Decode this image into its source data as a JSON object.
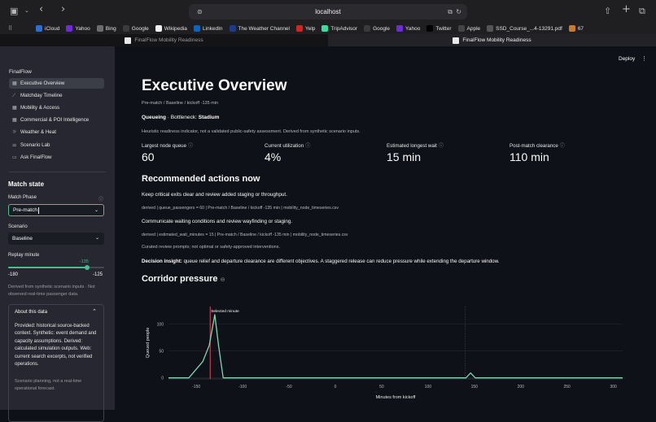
{
  "browser": {
    "url": "localhost",
    "bookmarks": [
      {
        "label": "iCloud",
        "icon": "apple-logo-icon",
        "color": "#2b6fd6"
      },
      {
        "label": "Yahoo",
        "icon": "yahoo-icon",
        "color": "#6d2bd9"
      },
      {
        "label": "Bing",
        "icon": "bing-icon",
        "color": "#6c6c6c"
      },
      {
        "label": "Google",
        "icon": "google-icon",
        "color": "#3a3a3a"
      },
      {
        "label": "Wikipedia",
        "icon": "wikipedia-icon",
        "color": "#f1f1f1"
      },
      {
        "label": "LinkedIn",
        "icon": "linkedin-icon",
        "color": "#0a66c2"
      },
      {
        "label": "The Weather Channel",
        "icon": "weather-channel-icon",
        "color": "#1d3a8f"
      },
      {
        "label": "Yelp",
        "icon": "yelp-icon",
        "color": "#d32323"
      },
      {
        "label": "TripAdvisor",
        "icon": "tripadvisor-icon",
        "color": "#34e0a1"
      },
      {
        "label": "Google",
        "icon": "google-icon",
        "color": "#3a3a3a"
      },
      {
        "label": "Yahoo",
        "icon": "yahoo-icon",
        "color": "#6d2bd9"
      },
      {
        "label": "Twitter",
        "icon": "twitter-x-icon",
        "color": "#000000"
      },
      {
        "label": "Apple",
        "icon": "apple-logo-icon",
        "color": "#444444"
      },
      {
        "label": "SSD_Course_...4-13291.pdf",
        "icon": "pdf-icon",
        "color": "#555555"
      },
      {
        "label": "67",
        "icon": "nbc-icon",
        "color": "#c77b2b"
      }
    ],
    "tabs": [
      {
        "label": "FinalFlow Mobility Readiness",
        "active": false
      },
      {
        "label": "FinalFlow Mobility Readiness",
        "active": true
      }
    ]
  },
  "app": {
    "deploy_label": "Deploy",
    "brand": "FinalFlow",
    "nav": [
      {
        "label": "Executive Overview",
        "icon": "grid-icon",
        "active": true
      },
      {
        "label": "Matchday Timeline",
        "icon": "trend-line-icon",
        "active": false
      },
      {
        "label": "Mobility & Access",
        "icon": "grid-icon",
        "active": false
      },
      {
        "label": "Commercial & POI Intelligence",
        "icon": "grid-icon",
        "active": false
      },
      {
        "label": "Weather & Heat",
        "icon": "sun-icon",
        "active": false
      },
      {
        "label": "Scenario Lab",
        "icon": "sliders-icon",
        "active": false
      },
      {
        "label": "Ask FinalFlow",
        "icon": "chat-icon",
        "active": false
      }
    ],
    "match_state": {
      "heading": "Match state",
      "phase_label": "Match Phase",
      "phase_value": "Pre-match",
      "scenario_label": "Scenario",
      "scenario_value": "Baseline",
      "replay_label": "Replay minute",
      "replay_value": "-135",
      "replay_min": "-180",
      "replay_max": "-125",
      "replay_fraction": 0.82,
      "note": "Derived from synthetic scenario inputs · Not observed real-time passenger data."
    },
    "about": {
      "title": "About this data",
      "body": "Provided: historical source-backed context. Synthetic: event demand and capacity assumptions. Derived: calculated simulation outputs. Web: current search excerpts, not verified operations.",
      "footer": "Scenario planning, not a real-time operational forecast."
    }
  },
  "main": {
    "title": "Executive Overview",
    "breadcrumb": "Pre-match / Baseline / kickoff -135 min",
    "queueing_label": "Queueing",
    "bottleneck_text": " · Bottleneck: ",
    "bottleneck_value": "Stadium",
    "disclaimer": "Heuristic readiness indicator, not a validated public-safety assessment. Derived from synthetic scenario inputs.",
    "metrics": [
      {
        "label": "Largest node queue",
        "value": "60"
      },
      {
        "label": "Current utilization",
        "value": "4%"
      },
      {
        "label": "Estimated longest wait",
        "value": "15 min"
      },
      {
        "label": "Post-match clearance",
        "value": "110 min"
      }
    ],
    "actions_heading": "Recommended actions now",
    "action1": "Keep critical exits clear and review added staging or throughput.",
    "action1_src": "derived | queue_passengers = 60 | Pre-match / Baseline / kickoff -135 min | mobility_node_timeseries.csv",
    "action2": "Communicate waiting conditions and review wayfinding or staging.",
    "action2_src": "derived | estimated_wait_minutes = 15 | Pre-match / Baseline / kickoff -135 min | mobility_node_timeseries.csv",
    "curated_note": "Curated review prompts; not optimal or safety-approved interventions.",
    "insight_label": "Decision insight:",
    "insight_text": " queue relief and departure clearance are different objectives. A staggered release can reduce pressure while extending the departure window.",
    "corridor_heading": "Corridor pressure"
  },
  "chart_data": {
    "type": "line",
    "xlabel": "Minutes from kickoff",
    "ylabel": "Queued people",
    "xlim": [
      -180,
      310
    ],
    "ylim": [
      -2,
      132
    ],
    "xticks": [
      -150,
      -100,
      -50,
      0,
      50,
      100,
      150,
      200,
      250,
      300
    ],
    "yticks": [
      0,
      50,
      100
    ],
    "marker": {
      "x": -135,
      "label": "Selected minute"
    },
    "line_color": "#7ed6b2",
    "marker_color": "#e0475a",
    "series": [
      {
        "x": [
          -180,
          -158,
          -143,
          -136,
          -130,
          -126,
          -121,
          100,
          141,
          146,
          151,
          310
        ],
        "y": [
          0,
          0,
          30,
          60,
          117,
          60,
          0,
          0,
          0,
          9,
          0,
          0
        ]
      }
    ]
  }
}
